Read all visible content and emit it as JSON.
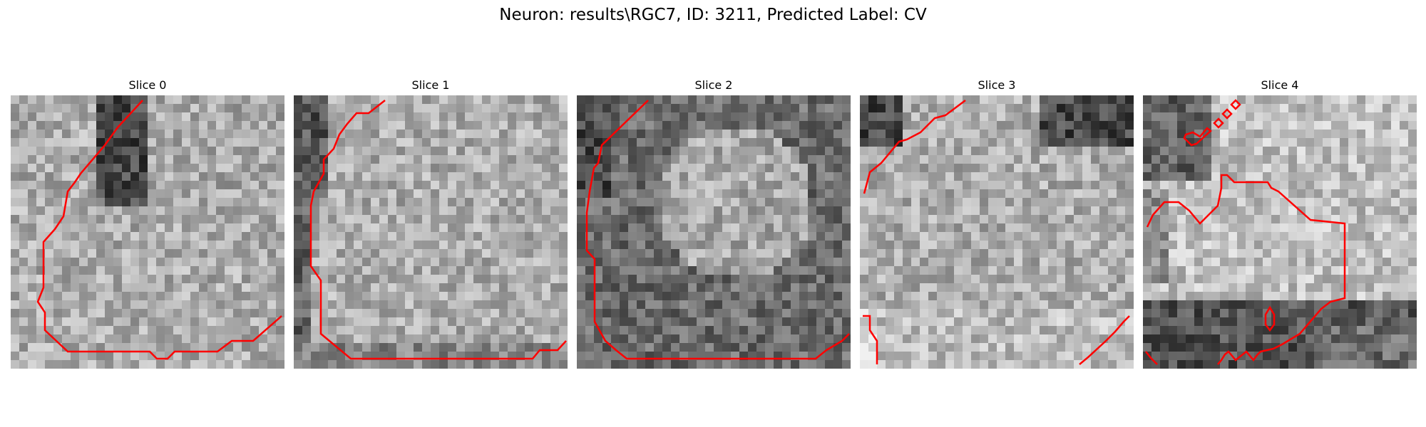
{
  "figure": {
    "title": "Neuron: results\\RGC7, ID: 3211, Predicted Label: CV"
  },
  "panels": [
    {
      "title": "Slice 0"
    },
    {
      "title": "Slice 1"
    },
    {
      "title": "Slice 2"
    },
    {
      "title": "Slice 3"
    },
    {
      "title": "Slice 4"
    }
  ],
  "colors": {
    "contour": "#ff0000",
    "background": "#ffffff"
  }
}
